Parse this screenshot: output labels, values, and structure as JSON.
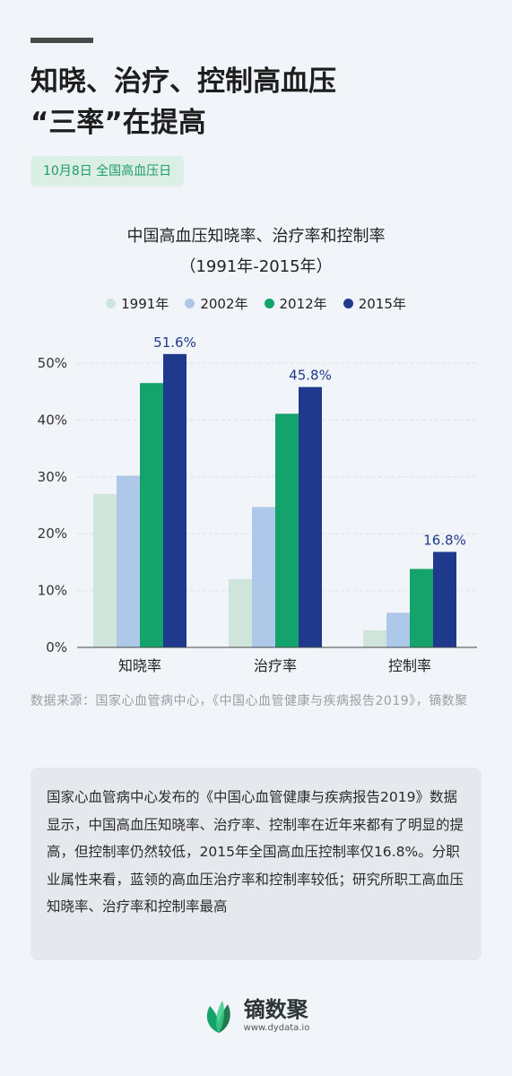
{
  "header": {
    "title_line1": "知晓、治疗、控制高血压",
    "title_line2": "“三率”在提高",
    "badge": "10月8日 全国高血压日"
  },
  "chart_data": {
    "type": "bar",
    "title_line1": "中国高血压知晓率、治疗率和控制率",
    "title_line2": "（1991年-2015年）",
    "categories": [
      "知晓率",
      "治疗率",
      "控制率"
    ],
    "series": [
      {
        "name": "1991年",
        "color": "#cfe5dc",
        "values": [
          27.0,
          12.0,
          3.0
        ]
      },
      {
        "name": "2002年",
        "color": "#aec8e9",
        "values": [
          30.2,
          24.7,
          6.1
        ]
      },
      {
        "name": "2012年",
        "color": "#14a36a",
        "values": [
          46.5,
          41.1,
          13.8
        ]
      },
      {
        "name": "2015年",
        "color": "#1f3a8c",
        "values": [
          51.6,
          45.8,
          16.8
        ]
      }
    ],
    "highlight_labels": [
      "51.6%",
      "45.8%",
      "16.8%"
    ],
    "ylim": [
      0,
      50
    ],
    "yticks": [
      "0%",
      "10%",
      "20%",
      "30%",
      "40%",
      "50%"
    ],
    "grid": true,
    "legend_position": "top"
  },
  "source_text": "数据来源：国家心血管病中心，《中国心血管健康与疾病报告2019》，镝数聚",
  "summary_text": "国家心血管病中心发布的《中国心血管健康与疾病报告2019》数据显示，中国高血压知晓率、治疗率、控制率在近年来都有了明显的提高，但控制率仍然较低，2015年全国高血压控制率仅16.8%。分职业属性来看，蓝领的高血压治疗率和控制率较低；研究所职工高血压知晓率、治疗率和控制率最高",
  "footer": {
    "brand_name": "镝数聚",
    "url": "www.dydata.io",
    "logo_icon": "leaf-logo-icon"
  }
}
